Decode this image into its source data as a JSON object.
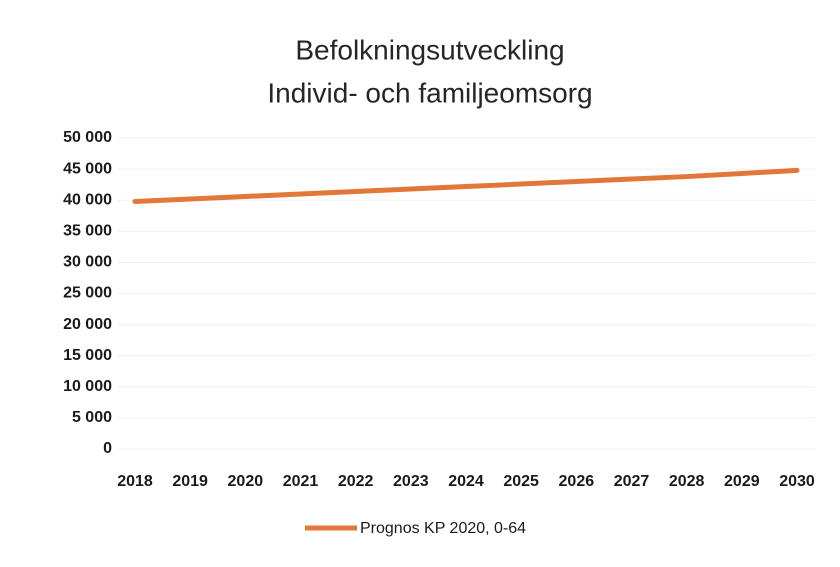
{
  "chart_data": {
    "type": "line",
    "title": "Befolkningsutveckling",
    "subtitle": "Individ- och familjeomsorg",
    "categories": [
      "2018",
      "2019",
      "2020",
      "2021",
      "2022",
      "2023",
      "2024",
      "2025",
      "2026",
      "2027",
      "2028",
      "2029",
      "2030"
    ],
    "series": [
      {
        "name": "Prognos KP 2020, 0-64",
        "color": "#e2773a",
        "values": [
          39800,
          40200,
          40600,
          41000,
          41400,
          41800,
          42200,
          42600,
          43000,
          43400,
          43800,
          44300,
          44800
        ]
      }
    ],
    "ylim": [
      0,
      50000
    ],
    "yticks": [
      0,
      {
        "value": 5000,
        "label": "5 000"
      },
      {
        "value": 10000,
        "label": "10 000"
      },
      {
        "value": 15000,
        "label": "15 000"
      },
      {
        "value": 20000,
        "label": "20 000"
      },
      {
        "value": 25000,
        "label": "25 000"
      },
      {
        "value": 30000,
        "label": "30 000"
      },
      {
        "value": 35000,
        "label": "35 000"
      },
      {
        "value": 40000,
        "label": "40 000"
      },
      {
        "value": 45000,
        "label": "45 000"
      },
      {
        "value": 50000,
        "label": "50 000"
      }
    ],
    "grid": true,
    "legend": "bottom"
  }
}
